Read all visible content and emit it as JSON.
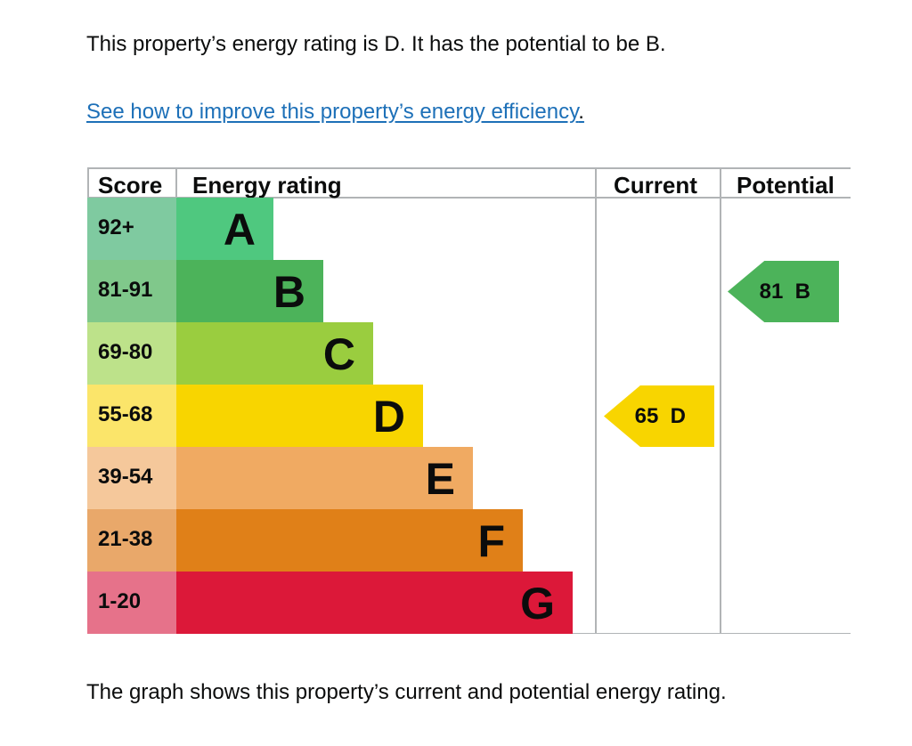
{
  "intro": "This property’s energy rating is D. It has the potential to be B.",
  "link": "See how to improve this property’s energy efficiency",
  "link_suffix": ".",
  "footer": "The graph shows this property’s current and potential energy rating.",
  "chart_data": {
    "type": "bar",
    "headers": {
      "score": "Score",
      "rating": "Energy rating",
      "current": "Current",
      "potential": "Potential"
    },
    "bands": [
      {
        "score": "92+",
        "letter": "A",
        "color": "#4fc87f",
        "score_color": "#7fcaa0"
      },
      {
        "score": "81-91",
        "letter": "B",
        "color": "#4cb35a",
        "score_color": "#80c88b"
      },
      {
        "score": "69-80",
        "letter": "C",
        "color": "#9acd3f",
        "score_color": "#bde28a"
      },
      {
        "score": "55-68",
        "letter": "D",
        "color": "#f8d500",
        "score_color": "#fbe56a"
      },
      {
        "score": "39-54",
        "letter": "E",
        "color": "#f0aa62",
        "score_color": "#f5c89b"
      },
      {
        "score": "21-38",
        "letter": "F",
        "color": "#e08018",
        "score_color": "#e9a86a"
      },
      {
        "score": "1-20",
        "letter": "G",
        "color": "#dc1839",
        "score_color": "#e6728a"
      }
    ],
    "current": {
      "value": 65,
      "letter": "D",
      "label": "65  D",
      "color": "#f8d500"
    },
    "potential": {
      "value": 81,
      "letter": "B",
      "label": "81  B",
      "color": "#4cb35a"
    }
  }
}
